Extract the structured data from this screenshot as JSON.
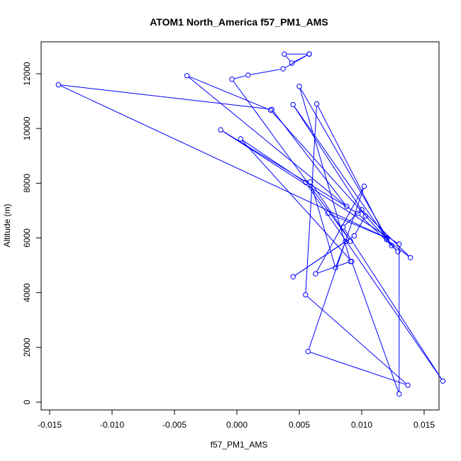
{
  "chart_data": {
    "type": "line",
    "title": "ATOM1 North_America f57_PM1_AMS",
    "xlabel": "f57_PM1_AMS",
    "ylabel": "Altitude (m)",
    "xlim": [
      -0.015,
      0.0165
    ],
    "ylim": [
      0,
      12800
    ],
    "x_ticks": [
      -0.015,
      -0.01,
      -0.005,
      0.0,
      0.005,
      0.01,
      0.015
    ],
    "x_tick_labels": [
      "-0.015",
      "-0.010",
      "-0.005",
      "0.000",
      "0.005",
      "0.010",
      "0.015"
    ],
    "y_ticks": [
      0,
      2000,
      4000,
      6000,
      8000,
      10000,
      12000
    ],
    "y_tick_labels": [
      "0",
      "2000",
      "4000",
      "6000",
      "8000",
      "10000",
      "12000"
    ],
    "grid": false,
    "color": "#0000ff",
    "marker": "open-circle",
    "series": [
      {
        "points": [
          [
            0.0058,
            12720
          ],
          [
            0.0044,
            12390
          ],
          [
            0.0038,
            12720
          ],
          [
            0.0058,
            12720
          ],
          [
            0.0037,
            12180
          ],
          [
            0.0009,
            11950
          ],
          [
            -0.0004,
            11800
          ],
          [
            0.0091,
            5880
          ],
          [
            0.0059,
            8050
          ],
          [
            0.0079,
            4910
          ],
          [
            0.0087,
            5870
          ],
          [
            0.0045,
            4580
          ],
          [
            0.0094,
            6080
          ],
          [
            0.0103,
            6800
          ],
          [
            0.0045,
            10870
          ],
          [
            0.0124,
            5720
          ],
          [
            0.005,
            11540
          ],
          [
            0.0091,
            5140
          ],
          [
            0.0063,
            4690
          ],
          [
            0.0102,
            7890
          ],
          [
            0.0057,
            1850
          ],
          [
            0.0137,
            620
          ],
          [
            0.0055,
            3920
          ],
          [
            0.0064,
            10900
          ],
          [
            0.012,
            5940
          ],
          [
            0.0139,
            5280
          ],
          [
            0.01,
            7030
          ],
          [
            0.0085,
            6400
          ],
          [
            0.0165,
            770
          ],
          [
            0.0055,
            8030
          ],
          [
            0.0003,
            9620
          ],
          [
            0.0092,
            5140
          ],
          [
            0.013,
            300
          ],
          [
            0.013,
            5770
          ],
          [
            -0.0013,
            9950
          ],
          [
            0.0097,
            6890
          ],
          [
            0.0129,
            5500
          ],
          [
            0.0027,
            10670
          ],
          [
            -0.004,
            11930
          ],
          [
            0.0088,
            7150
          ],
          [
            0.0028,
            10700
          ],
          [
            -0.0143,
            11600
          ],
          [
            0.012,
            6000
          ],
          [
            0.0073,
            6900
          ]
        ]
      }
    ]
  }
}
